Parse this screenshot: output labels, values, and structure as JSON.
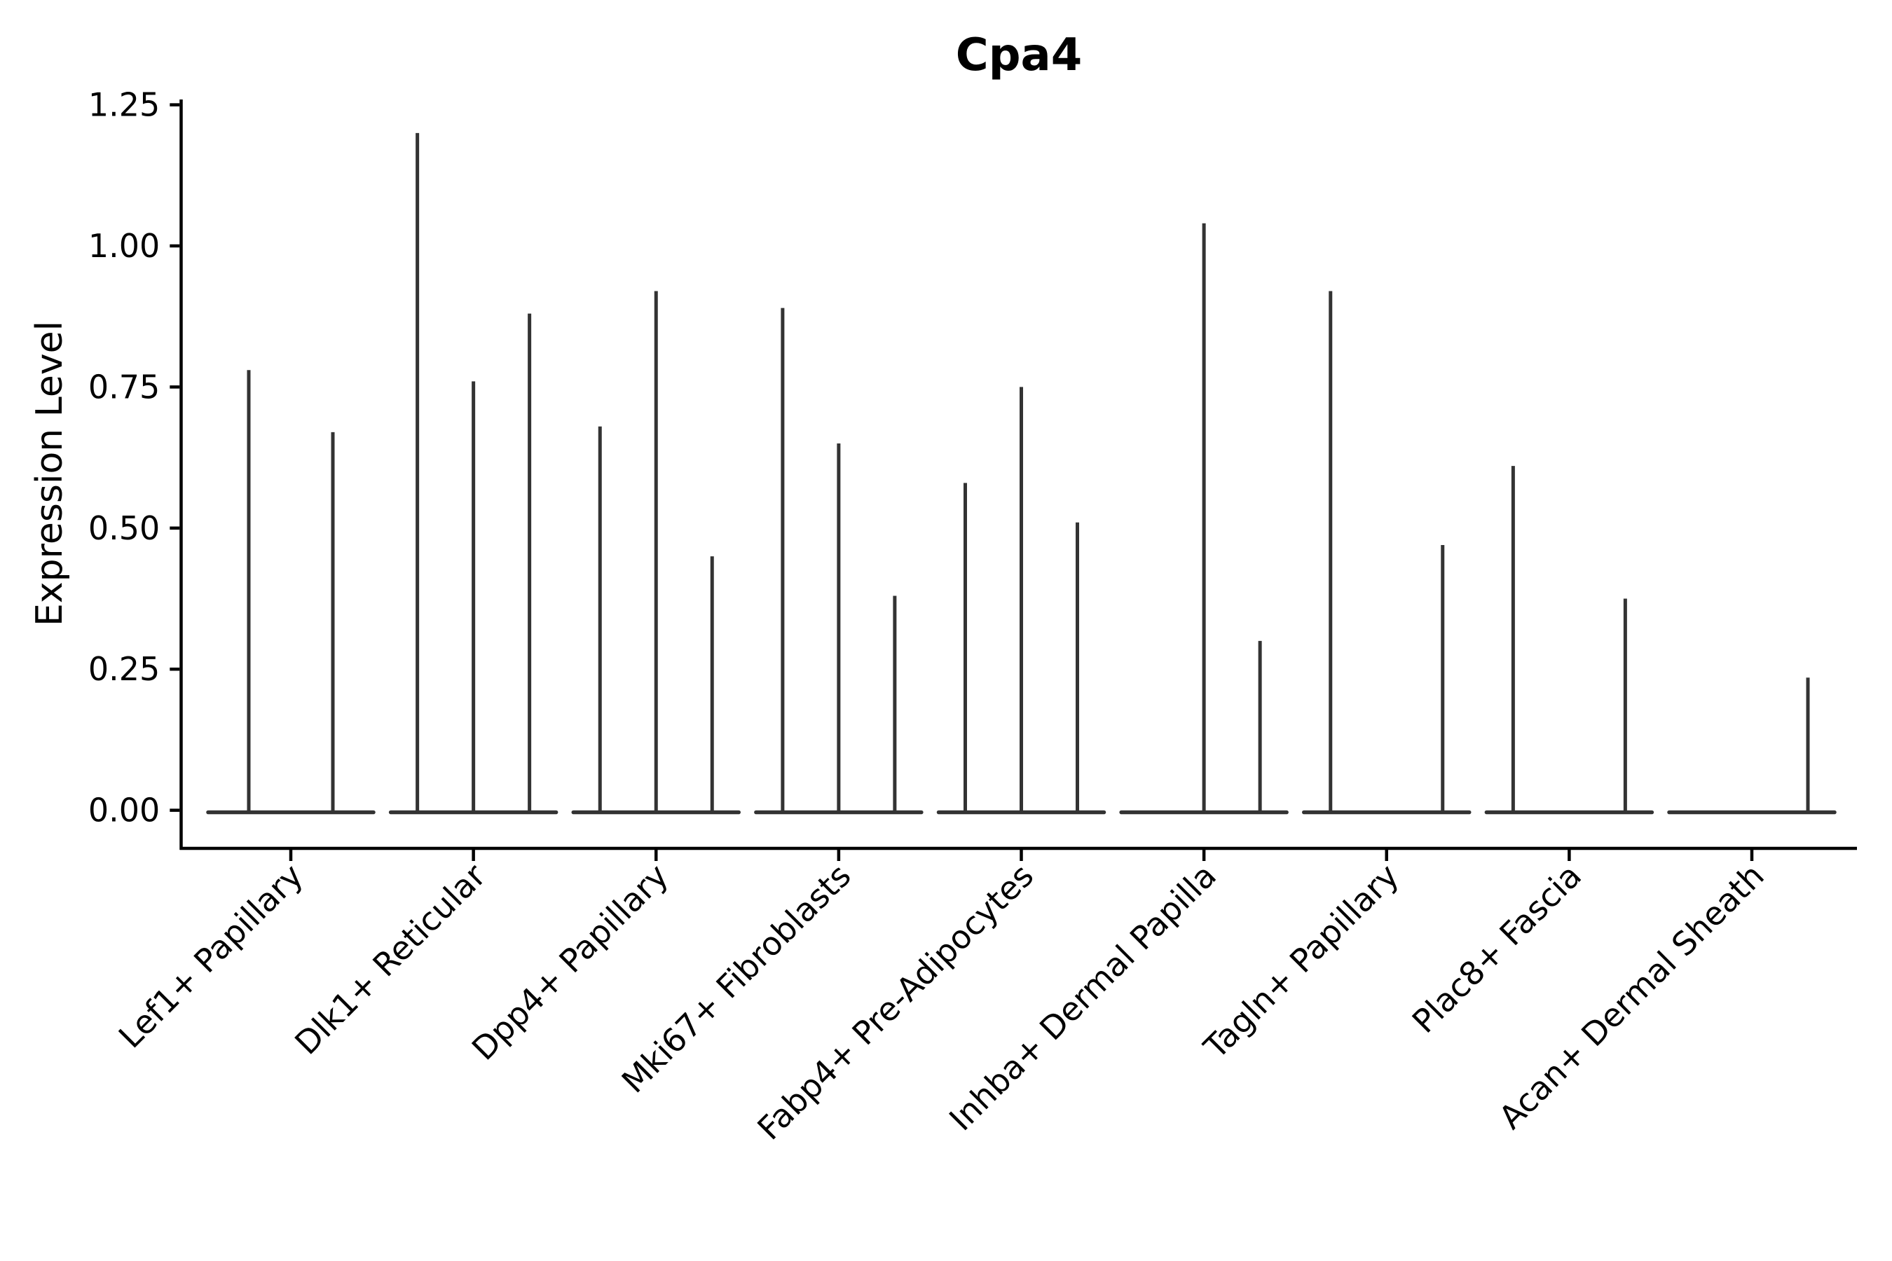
{
  "chart_data": {
    "type": "violin",
    "title": "Cpa4",
    "ylabel": "Expression Level",
    "xlabel": "",
    "grid": false,
    "legend": null,
    "ylim": [
      -0.07,
      1.26
    ],
    "ytick_labels": [
      "0.00",
      "0.25",
      "0.50",
      "0.75",
      "1.00",
      "1.25"
    ],
    "ytick_values": [
      0,
      0.25,
      0.5,
      0.75,
      1.0,
      1.25
    ],
    "colors": {
      "violin": "#333333",
      "axis": "#000000",
      "text": "#000000",
      "background": "#ffffff"
    },
    "categories": [
      {
        "label": "Lef1+ Papillary",
        "n_violins": 2,
        "spikes": [
          {
            "slot": 0,
            "max": 0.78
          },
          {
            "slot": 1,
            "max": 0.67
          }
        ]
      },
      {
        "label": "Dlk1+ Reticular",
        "n_violins": 3,
        "spikes": [
          {
            "slot": 0,
            "max": 1.2
          },
          {
            "slot": 1,
            "max": 0.76
          },
          {
            "slot": 2,
            "max": 0.88
          }
        ]
      },
      {
        "label": "Dpp4+ Papillary",
        "n_violins": 3,
        "spikes": [
          {
            "slot": 0,
            "max": 0.68
          },
          {
            "slot": 1,
            "max": 0.92
          },
          {
            "slot": 2,
            "max": 0.45
          }
        ]
      },
      {
        "label": "Mki67+ Fibroblasts",
        "n_violins": 3,
        "spikes": [
          {
            "slot": 0,
            "max": 0.89
          },
          {
            "slot": 1,
            "max": 0.65
          },
          {
            "slot": 2,
            "max": 0.38
          }
        ]
      },
      {
        "label": "Fabp4+ Pre-Adipocytes",
        "n_violins": 3,
        "spikes": [
          {
            "slot": 0,
            "max": 0.58
          },
          {
            "slot": 1,
            "max": 0.75
          },
          {
            "slot": 2,
            "max": 0.51
          }
        ]
      },
      {
        "label": "Inhba+ Dermal Papilla",
        "n_violins": 3,
        "spikes": [
          {
            "slot": 1,
            "max": 1.04
          },
          {
            "slot": 2,
            "max": 0.3
          }
        ]
      },
      {
        "label": "Tagln+ Papillary",
        "n_violins": 3,
        "spikes": [
          {
            "slot": 0,
            "max": 0.92
          },
          {
            "slot": 2,
            "max": 0.47
          }
        ]
      },
      {
        "label": "Plac8+ Fascia",
        "n_violins": 3,
        "spikes": [
          {
            "slot": 0,
            "max": 0.61
          },
          {
            "slot": 2,
            "max": 0.375
          }
        ]
      },
      {
        "label": "Acan+ Dermal Sheath",
        "n_violins": 3,
        "spikes": [
          {
            "slot": 2,
            "max": 0.235
          }
        ]
      }
    ]
  }
}
